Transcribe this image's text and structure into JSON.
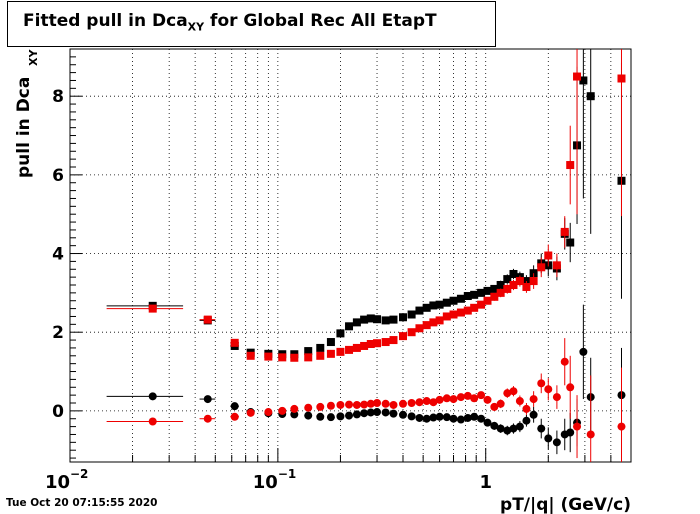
{
  "chart_data": {
    "type": "scatter",
    "title": "Fitted pull in Dca",
    "title_sub": "XY",
    "title_suffix": " for Global Rec All EtapT",
    "ylabel": "pull in Dca",
    "ylabel_sub": "XY",
    "xlabel": "pT/|q| (GeV/c)",
    "x_scale": "log",
    "xlim": [
      0.01,
      5.0
    ],
    "ylim": [
      -1.3,
      9.2
    ],
    "y_ticks": [
      0,
      2,
      4,
      6,
      8
    ],
    "x_tick_labels": [
      {
        "value": 0.01,
        "base": "10",
        "exp": "−2"
      },
      {
        "value": 0.1,
        "base": "10",
        "exp": "−1"
      },
      {
        "value": 1,
        "base": "1",
        "exp": ""
      }
    ],
    "grid": true,
    "colors": {
      "black": "#000000",
      "red": "#ee0000"
    },
    "series": [
      {
        "color": "black",
        "marker": "square",
        "points": [
          [
            0.025,
            2.67,
            0.01,
            0.04
          ],
          [
            0.046,
            2.3,
            0.004,
            0.06
          ],
          [
            0.062,
            1.65,
            0.003,
            0.06
          ],
          [
            0.074,
            1.48,
            0.003,
            0.05
          ],
          [
            0.09,
            1.45,
            0.003,
            0.05
          ],
          [
            0.105,
            1.44,
            0.003,
            0.05
          ],
          [
            0.12,
            1.44,
            0.003,
            0.05
          ],
          [
            0.14,
            1.52,
            0.003,
            0.05
          ],
          [
            0.16,
            1.6,
            0.003,
            0.05
          ],
          [
            0.18,
            1.75,
            0.003,
            0.05
          ],
          [
            0.2,
            1.97,
            0.003,
            0.05
          ],
          [
            0.22,
            2.15,
            0.003,
            0.05
          ],
          [
            0.24,
            2.25,
            0.003,
            0.05
          ],
          [
            0.26,
            2.32,
            0.003,
            0.05
          ],
          [
            0.28,
            2.35,
            0.003,
            0.05
          ],
          [
            0.3,
            2.33,
            0.003,
            0.05
          ],
          [
            0.33,
            2.3,
            0.003,
            0.05
          ],
          [
            0.36,
            2.32,
            0.003,
            0.05
          ],
          [
            0.4,
            2.38,
            0.003,
            0.05
          ],
          [
            0.44,
            2.45,
            0.003,
            0.05
          ],
          [
            0.48,
            2.55,
            0.003,
            0.05
          ],
          [
            0.52,
            2.62,
            0.003,
            0.05
          ],
          [
            0.56,
            2.68,
            0.003,
            0.05
          ],
          [
            0.6,
            2.7,
            0.003,
            0.06
          ],
          [
            0.65,
            2.75,
            0.003,
            0.06
          ],
          [
            0.7,
            2.8,
            0.003,
            0.06
          ],
          [
            0.76,
            2.85,
            0.003,
            0.07
          ],
          [
            0.82,
            2.92,
            0.003,
            0.07
          ],
          [
            0.88,
            2.95,
            0.003,
            0.08
          ],
          [
            0.95,
            3.0,
            0.003,
            0.08
          ],
          [
            1.02,
            3.05,
            0.003,
            0.09
          ],
          [
            1.1,
            3.1,
            0.003,
            0.1
          ],
          [
            1.18,
            3.2,
            0.003,
            0.11
          ],
          [
            1.27,
            3.35,
            0.003,
            0.12
          ],
          [
            1.36,
            3.48,
            0.003,
            0.13
          ],
          [
            1.46,
            3.4,
            0.003,
            0.14
          ],
          [
            1.57,
            3.3,
            0.003,
            0.15
          ],
          [
            1.7,
            3.5,
            0.003,
            0.2
          ],
          [
            1.85,
            3.75,
            0.003,
            0.25
          ],
          [
            2.0,
            3.7,
            0.003,
            0.28
          ],
          [
            2.2,
            3.62,
            0.003,
            0.3
          ],
          [
            2.4,
            4.5,
            0.003,
            0.4
          ],
          [
            2.55,
            4.28,
            0.003,
            0.5
          ],
          [
            2.75,
            6.75,
            0.003,
            2.0
          ],
          [
            2.95,
            8.4,
            0.003,
            3.0
          ],
          [
            3.2,
            8.0,
            0.003,
            3.5
          ],
          [
            4.5,
            5.85,
            0.003,
            3.0
          ]
        ]
      },
      {
        "color": "red",
        "marker": "square",
        "points": [
          [
            0.025,
            2.6,
            0.01,
            0.04
          ],
          [
            0.046,
            2.32,
            0.004,
            0.06
          ],
          [
            0.062,
            1.73,
            0.003,
            0.06
          ],
          [
            0.074,
            1.4,
            0.003,
            0.05
          ],
          [
            0.09,
            1.38,
            0.003,
            0.05
          ],
          [
            0.105,
            1.36,
            0.003,
            0.05
          ],
          [
            0.12,
            1.35,
            0.003,
            0.05
          ],
          [
            0.14,
            1.36,
            0.003,
            0.05
          ],
          [
            0.16,
            1.4,
            0.003,
            0.05
          ],
          [
            0.18,
            1.45,
            0.003,
            0.05
          ],
          [
            0.2,
            1.5,
            0.003,
            0.05
          ],
          [
            0.22,
            1.55,
            0.003,
            0.05
          ],
          [
            0.24,
            1.6,
            0.003,
            0.05
          ],
          [
            0.26,
            1.65,
            0.003,
            0.05
          ],
          [
            0.28,
            1.7,
            0.003,
            0.05
          ],
          [
            0.3,
            1.72,
            0.003,
            0.05
          ],
          [
            0.33,
            1.75,
            0.003,
            0.05
          ],
          [
            0.36,
            1.8,
            0.003,
            0.05
          ],
          [
            0.4,
            1.9,
            0.003,
            0.05
          ],
          [
            0.44,
            2.0,
            0.003,
            0.05
          ],
          [
            0.48,
            2.1,
            0.003,
            0.05
          ],
          [
            0.52,
            2.18,
            0.003,
            0.05
          ],
          [
            0.56,
            2.25,
            0.003,
            0.05
          ],
          [
            0.6,
            2.3,
            0.003,
            0.06
          ],
          [
            0.65,
            2.4,
            0.003,
            0.06
          ],
          [
            0.7,
            2.45,
            0.003,
            0.06
          ],
          [
            0.76,
            2.5,
            0.003,
            0.07
          ],
          [
            0.82,
            2.55,
            0.003,
            0.07
          ],
          [
            0.88,
            2.62,
            0.003,
            0.08
          ],
          [
            0.95,
            2.7,
            0.003,
            0.08
          ],
          [
            1.02,
            2.8,
            0.003,
            0.09
          ],
          [
            1.1,
            2.9,
            0.003,
            0.1
          ],
          [
            1.18,
            3.0,
            0.003,
            0.11
          ],
          [
            1.27,
            3.1,
            0.003,
            0.12
          ],
          [
            1.36,
            3.2,
            0.003,
            0.13
          ],
          [
            1.46,
            3.3,
            0.003,
            0.14
          ],
          [
            1.57,
            3.15,
            0.003,
            0.15
          ],
          [
            1.7,
            3.3,
            0.003,
            0.2
          ],
          [
            1.85,
            3.65,
            0.003,
            0.25
          ],
          [
            2.0,
            3.95,
            0.003,
            0.28
          ],
          [
            2.2,
            3.7,
            0.003,
            0.3
          ],
          [
            2.4,
            4.55,
            0.003,
            0.4
          ],
          [
            2.55,
            6.25,
            0.003,
            1.0
          ],
          [
            2.75,
            8.5,
            0.003,
            3.5
          ],
          [
            4.5,
            8.45,
            0.003,
            3.5
          ]
        ]
      },
      {
        "color": "black",
        "marker": "circle",
        "points": [
          [
            0.025,
            0.37,
            0.01,
            0.03
          ],
          [
            0.046,
            0.3,
            0.004,
            0.04
          ],
          [
            0.062,
            0.12,
            0.003,
            0.04
          ],
          [
            0.074,
            -0.03,
            0.003,
            0.04
          ],
          [
            0.09,
            -0.06,
            0.003,
            0.04
          ],
          [
            0.105,
            -0.08,
            0.003,
            0.04
          ],
          [
            0.12,
            -0.09,
            0.003,
            0.04
          ],
          [
            0.14,
            -0.12,
            0.003,
            0.04
          ],
          [
            0.16,
            -0.15,
            0.003,
            0.04
          ],
          [
            0.18,
            -0.16,
            0.003,
            0.04
          ],
          [
            0.2,
            -0.14,
            0.003,
            0.04
          ],
          [
            0.22,
            -0.12,
            0.003,
            0.04
          ],
          [
            0.24,
            -0.09,
            0.003,
            0.04
          ],
          [
            0.26,
            -0.06,
            0.003,
            0.04
          ],
          [
            0.28,
            -0.04,
            0.003,
            0.04
          ],
          [
            0.3,
            -0.03,
            0.003,
            0.04
          ],
          [
            0.33,
            -0.04,
            0.003,
            0.04
          ],
          [
            0.36,
            -0.07,
            0.003,
            0.04
          ],
          [
            0.4,
            -0.1,
            0.003,
            0.05
          ],
          [
            0.44,
            -0.14,
            0.003,
            0.05
          ],
          [
            0.48,
            -0.18,
            0.003,
            0.05
          ],
          [
            0.52,
            -0.2,
            0.003,
            0.05
          ],
          [
            0.56,
            -0.17,
            0.003,
            0.05
          ],
          [
            0.6,
            -0.15,
            0.003,
            0.06
          ],
          [
            0.65,
            -0.16,
            0.003,
            0.06
          ],
          [
            0.7,
            -0.2,
            0.003,
            0.06
          ],
          [
            0.76,
            -0.22,
            0.003,
            0.07
          ],
          [
            0.82,
            -0.18,
            0.003,
            0.07
          ],
          [
            0.88,
            -0.15,
            0.003,
            0.08
          ],
          [
            0.95,
            -0.2,
            0.003,
            0.08
          ],
          [
            1.02,
            -0.3,
            0.003,
            0.09
          ],
          [
            1.1,
            -0.38,
            0.003,
            0.1
          ],
          [
            1.18,
            -0.45,
            0.003,
            0.11
          ],
          [
            1.27,
            -0.5,
            0.003,
            0.12
          ],
          [
            1.36,
            -0.45,
            0.003,
            0.13
          ],
          [
            1.46,
            -0.4,
            0.003,
            0.14
          ],
          [
            1.57,
            -0.25,
            0.003,
            0.15
          ],
          [
            1.7,
            -0.1,
            0.003,
            0.2
          ],
          [
            1.85,
            -0.45,
            0.003,
            0.25
          ],
          [
            2.0,
            -0.7,
            0.003,
            0.28
          ],
          [
            2.2,
            -0.8,
            0.003,
            0.3
          ],
          [
            2.4,
            -0.6,
            0.003,
            0.4
          ],
          [
            2.55,
            -0.55,
            0.003,
            0.5
          ],
          [
            2.75,
            -0.3,
            0.003,
            0.6
          ],
          [
            2.95,
            1.5,
            0.003,
            1.2
          ],
          [
            3.2,
            0.35,
            0.003,
            1.0
          ],
          [
            4.5,
            0.4,
            0.003,
            1.2
          ]
        ]
      },
      {
        "color": "red",
        "marker": "circle",
        "points": [
          [
            0.025,
            -0.27,
            0.01,
            0.03
          ],
          [
            0.046,
            -0.2,
            0.004,
            0.04
          ],
          [
            0.062,
            -0.15,
            0.003,
            0.04
          ],
          [
            0.074,
            -0.05,
            0.003,
            0.04
          ],
          [
            0.09,
            -0.03,
            0.003,
            0.04
          ],
          [
            0.105,
            0.0,
            0.003,
            0.04
          ],
          [
            0.12,
            0.05,
            0.003,
            0.04
          ],
          [
            0.14,
            0.08,
            0.003,
            0.04
          ],
          [
            0.16,
            0.1,
            0.003,
            0.04
          ],
          [
            0.18,
            0.13,
            0.003,
            0.04
          ],
          [
            0.2,
            0.15,
            0.003,
            0.04
          ],
          [
            0.22,
            0.16,
            0.003,
            0.04
          ],
          [
            0.24,
            0.15,
            0.003,
            0.04
          ],
          [
            0.26,
            0.16,
            0.003,
            0.04
          ],
          [
            0.28,
            0.18,
            0.003,
            0.04
          ],
          [
            0.3,
            0.2,
            0.003,
            0.04
          ],
          [
            0.33,
            0.18,
            0.003,
            0.04
          ],
          [
            0.36,
            0.15,
            0.003,
            0.04
          ],
          [
            0.4,
            0.18,
            0.003,
            0.05
          ],
          [
            0.44,
            0.2,
            0.003,
            0.05
          ],
          [
            0.48,
            0.22,
            0.003,
            0.05
          ],
          [
            0.52,
            0.25,
            0.003,
            0.05
          ],
          [
            0.56,
            0.22,
            0.003,
            0.05
          ],
          [
            0.6,
            0.28,
            0.003,
            0.06
          ],
          [
            0.65,
            0.32,
            0.003,
            0.06
          ],
          [
            0.7,
            0.3,
            0.003,
            0.06
          ],
          [
            0.76,
            0.35,
            0.003,
            0.07
          ],
          [
            0.82,
            0.38,
            0.003,
            0.07
          ],
          [
            0.88,
            0.32,
            0.003,
            0.08
          ],
          [
            0.95,
            0.4,
            0.003,
            0.08
          ],
          [
            1.02,
            0.28,
            0.003,
            0.09
          ],
          [
            1.1,
            0.1,
            0.003,
            0.1
          ],
          [
            1.18,
            0.18,
            0.003,
            0.11
          ],
          [
            1.27,
            0.45,
            0.003,
            0.12
          ],
          [
            1.36,
            0.5,
            0.003,
            0.13
          ],
          [
            1.46,
            0.25,
            0.003,
            0.14
          ],
          [
            1.57,
            0.05,
            0.003,
            0.15
          ],
          [
            1.7,
            0.3,
            0.003,
            0.2
          ],
          [
            1.85,
            0.7,
            0.003,
            0.25
          ],
          [
            2.0,
            0.55,
            0.003,
            0.28
          ],
          [
            2.2,
            0.35,
            0.003,
            0.3
          ],
          [
            2.4,
            1.25,
            0.003,
            0.6
          ],
          [
            2.55,
            0.6,
            0.003,
            0.8
          ],
          [
            2.75,
            -0.4,
            0.003,
            0.8
          ],
          [
            3.2,
            -0.6,
            0.003,
            1.5
          ],
          [
            4.5,
            -0.4,
            0.003,
            1.5
          ]
        ]
      }
    ]
  },
  "footer": {
    "timestamp": "Tue Oct 20 07:15:55 2020"
  }
}
